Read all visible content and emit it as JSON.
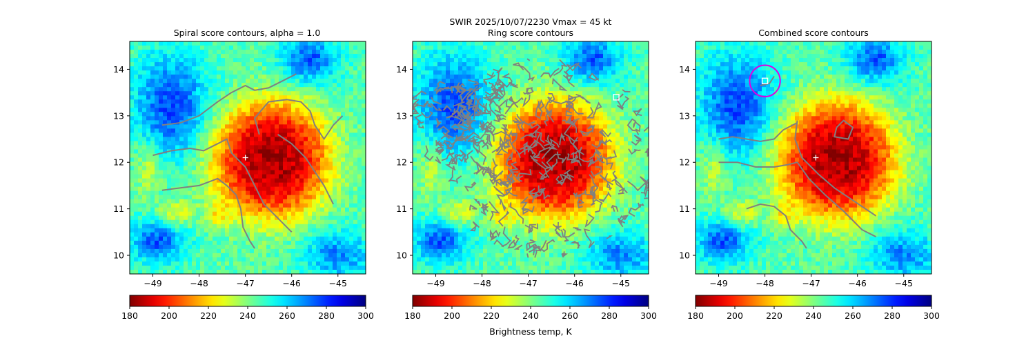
{
  "figure": {
    "suptitle_line1": "SWIR  2025/10/07/2230    Vmax = 45 kt",
    "colorbar_label": "Brightness temp, K"
  },
  "colors": {
    "contour": "#808080",
    "ring_circle": "#e000e0",
    "marker": "#ffffff"
  },
  "chart_data": [
    {
      "type": "heatmap",
      "title": "Spiral score contours, alpha =  1.0",
      "xlim": [
        -49.5,
        -44.4
      ],
      "ylim": [
        9.6,
        14.6
      ],
      "x_ticks": [
        -49,
        -48,
        -47,
        -46,
        -45
      ],
      "x_tick_labels": [
        "−49",
        "−48",
        "−47",
        "−46",
        "−45"
      ],
      "y_ticks": [
        10,
        11,
        12,
        13,
        14
      ],
      "y_tick_labels": [
        "10",
        "11",
        "12",
        "13",
        "14"
      ],
      "colorbar": {
        "range": [
          180,
          300
        ],
        "ticks": [
          "180",
          "200",
          "220",
          "240",
          "260",
          "280",
          "300"
        ],
        "colormap": "jet_r"
      },
      "center_marker": {
        "symbol": "+",
        "lon": -47.0,
        "lat": 12.1
      },
      "contours": [
        [
          [
            -48.8,
            12.8
          ],
          [
            -48.4,
            12.85
          ],
          [
            -48.0,
            13.0
          ],
          [
            -47.6,
            13.3
          ],
          [
            -47.3,
            13.5
          ],
          [
            -47.0,
            13.65
          ],
          [
            -46.8,
            13.55
          ],
          [
            -46.5,
            13.6
          ],
          [
            -46.2,
            13.75
          ],
          [
            -45.9,
            13.9
          ]
        ],
        [
          [
            -49.0,
            12.15
          ],
          [
            -48.6,
            12.25
          ],
          [
            -48.2,
            12.3
          ],
          [
            -47.9,
            12.25
          ],
          [
            -47.6,
            12.4
          ],
          [
            -47.4,
            12.5
          ],
          [
            -47.3,
            12.2
          ],
          [
            -47.0,
            11.9
          ],
          [
            -46.8,
            11.5
          ],
          [
            -46.6,
            11.1
          ],
          [
            -46.3,
            10.8
          ],
          [
            -46.0,
            10.5
          ]
        ],
        [
          [
            -48.8,
            11.4
          ],
          [
            -48.4,
            11.45
          ],
          [
            -48.0,
            11.5
          ],
          [
            -47.6,
            11.65
          ],
          [
            -47.4,
            11.5
          ],
          [
            -47.2,
            11.3
          ],
          [
            -47.1,
            11.0
          ],
          [
            -47.05,
            10.6
          ],
          [
            -46.9,
            10.3
          ],
          [
            -46.8,
            10.15
          ]
        ],
        [
          [
            -46.7,
            12.6
          ],
          [
            -46.8,
            12.95
          ],
          [
            -46.5,
            13.3
          ],
          [
            -46.1,
            13.35
          ],
          [
            -45.8,
            13.3
          ],
          [
            -45.6,
            13.1
          ],
          [
            -45.5,
            12.8
          ],
          [
            -45.3,
            12.5
          ],
          [
            -45.1,
            12.8
          ],
          [
            -44.9,
            13.0
          ]
        ],
        [
          [
            -46.3,
            12.6
          ],
          [
            -46.0,
            12.4
          ],
          [
            -45.7,
            12.1
          ],
          [
            -45.5,
            11.8
          ],
          [
            -45.3,
            11.5
          ],
          [
            -45.1,
            11.1
          ]
        ]
      ]
    },
    {
      "type": "heatmap",
      "title": "Ring score contours",
      "xlim": [
        -49.5,
        -44.4
      ],
      "ylim": [
        9.6,
        14.6
      ],
      "x_ticks": [
        -49,
        -48,
        -47,
        -46,
        -45
      ],
      "x_tick_labels": [
        "−49",
        "−48",
        "−47",
        "−46",
        "−45"
      ],
      "y_ticks": [
        10,
        11,
        12,
        13,
        14
      ],
      "y_tick_labels": [
        "10",
        "11",
        "12",
        "13",
        "14"
      ],
      "colorbar": {
        "range": [
          180,
          300
        ],
        "ticks": [
          "180",
          "200",
          "220",
          "240",
          "260",
          "280",
          "300"
        ],
        "colormap": "jet_r"
      },
      "square_marker": {
        "symbol": "square",
        "lon": -45.1,
        "lat": 13.4
      },
      "contour_region": {
        "description": "dense ring contours",
        "center": [
          -46.6,
          12.1
        ],
        "radius_deg": 2.3
      }
    },
    {
      "type": "heatmap",
      "title": "Combined score contours",
      "xlim": [
        -49.5,
        -44.4
      ],
      "ylim": [
        9.6,
        14.6
      ],
      "x_ticks": [
        -49,
        -48,
        -47,
        -46,
        -45
      ],
      "x_tick_labels": [
        "−49",
        "−48",
        "−47",
        "−46",
        "−45"
      ],
      "y_ticks": [
        10,
        11,
        12,
        13,
        14
      ],
      "y_tick_labels": [
        "10",
        "11",
        "12",
        "13",
        "14"
      ],
      "colorbar": {
        "range": [
          180,
          300
        ],
        "ticks": [
          "180",
          "200",
          "220",
          "240",
          "260",
          "280",
          "300"
        ],
        "colormap": "jet_r"
      },
      "center_marker": {
        "symbol": "+",
        "lon": -46.9,
        "lat": 12.1
      },
      "square_marker": {
        "symbol": "square",
        "lon": -48.0,
        "lat": 13.75
      },
      "circle": {
        "lon": -48.0,
        "lat": 13.75,
        "radius_deg": 0.33
      },
      "contours": [
        [
          [
            -49.0,
            12.5
          ],
          [
            -48.7,
            12.55
          ],
          [
            -48.4,
            12.5
          ],
          [
            -48.1,
            12.45
          ],
          [
            -47.8,
            12.5
          ],
          [
            -47.6,
            12.7
          ],
          [
            -47.3,
            12.85
          ]
        ],
        [
          [
            -49.0,
            12.0
          ],
          [
            -48.6,
            12.0
          ],
          [
            -48.2,
            11.9
          ],
          [
            -47.8,
            11.9
          ],
          [
            -47.5,
            11.95
          ],
          [
            -47.3,
            12.0
          ],
          [
            -47.05,
            11.65
          ],
          [
            -46.7,
            11.3
          ],
          [
            -46.3,
            10.95
          ],
          [
            -45.9,
            10.55
          ],
          [
            -45.6,
            10.4
          ]
        ],
        [
          [
            -48.4,
            11.0
          ],
          [
            -48.1,
            11.1
          ],
          [
            -47.8,
            11.05
          ],
          [
            -47.55,
            10.85
          ],
          [
            -47.45,
            10.55
          ],
          [
            -47.2,
            10.3
          ],
          [
            -47.1,
            10.15
          ]
        ],
        [
          [
            -47.3,
            12.9
          ],
          [
            -47.35,
            12.5
          ],
          [
            -47.2,
            12.1
          ],
          [
            -46.85,
            11.75
          ],
          [
            -46.5,
            11.45
          ],
          [
            -46.2,
            11.25
          ],
          [
            -45.9,
            11.05
          ],
          [
            -45.6,
            10.85
          ]
        ],
        [
          [
            -46.45,
            12.75
          ],
          [
            -46.3,
            12.9
          ],
          [
            -46.1,
            12.75
          ],
          [
            -46.2,
            12.5
          ],
          [
            -46.5,
            12.55
          ],
          [
            -46.45,
            12.75
          ]
        ],
        [
          [
            -48.1,
            13.65
          ],
          [
            -47.9,
            13.7
          ],
          [
            -47.8,
            13.85
          ]
        ]
      ]
    }
  ]
}
